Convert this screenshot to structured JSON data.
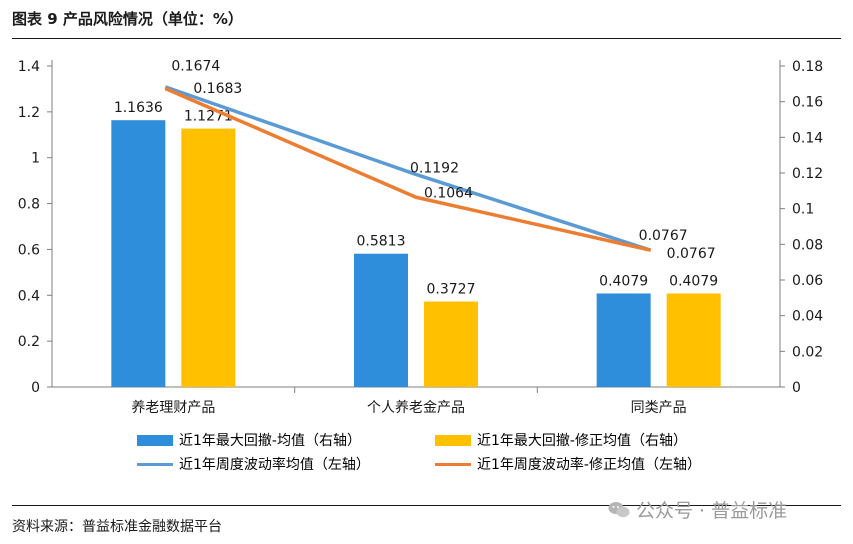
{
  "figure_title": "图表 9 产品风险情况（单位：%）",
  "source": "资料来源：普益标准金融数据平台",
  "watermark": "公众号 · 普益标准",
  "colors": {
    "bar_raw": "#2E8EDB",
    "bar_adj": "#FFC000",
    "line_raw": "#5B9BD5",
    "line_adj": "#ED7D31",
    "axis": "#7f7f7f"
  },
  "chart_data": {
    "type": "bar",
    "categories": [
      "养老理财产品",
      "个人养老金产品",
      "同类产品"
    ],
    "left_axis": {
      "ylim": [
        0,
        1.4
      ],
      "ticks": [
        "0",
        "0.2",
        "0.4",
        "0.6",
        "0.8",
        "1",
        "1.2",
        "1.4"
      ]
    },
    "right_axis": {
      "ylim": [
        0,
        0.18
      ],
      "ticks": [
        "0",
        "0.02",
        "0.04",
        "0.06",
        "0.08",
        "0.1",
        "0.12",
        "0.14",
        "0.16",
        "0.18"
      ]
    },
    "series": [
      {
        "name": "近1年最大回撤-均值（右轴）",
        "kind": "bar",
        "values": [
          1.1636,
          0.5813,
          0.4079
        ],
        "labels": [
          "1.1636",
          "0.5813",
          "0.4079"
        ]
      },
      {
        "name": "近1年最大回撤-修正均值（右轴）",
        "kind": "bar",
        "values": [
          1.1271,
          0.3727,
          0.4079
        ],
        "labels": [
          "1.1271",
          "0.3727",
          "0.4079"
        ]
      },
      {
        "name": "近1年周度波动率均值（左轴）",
        "kind": "line",
        "values": [
          0.1683,
          0.1192,
          0.0767
        ],
        "labels": [
          "0.1683",
          "0.1192",
          "0.0767"
        ]
      },
      {
        "name": "近1年周度波动率-修正均值（左轴）",
        "kind": "line",
        "values": [
          0.1674,
          0.1064,
          0.0767
        ],
        "labels": [
          "0.1674",
          "0.1064",
          "0.0767"
        ]
      }
    ],
    "grid": false,
    "legend_position": "bottom"
  }
}
